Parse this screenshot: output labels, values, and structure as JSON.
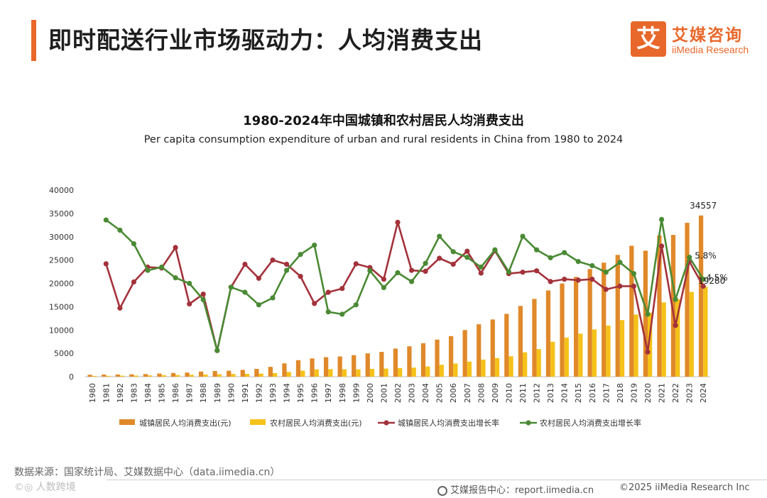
{
  "header": {
    "title": "即时配送行业市场驱动力：人均消费支出",
    "logo_mark": "艾",
    "logo_cn": "艾媒咨询",
    "logo_en": "iiMedia Research"
  },
  "chart_data": {
    "type": "bar+line",
    "title": "1980-2024年中国城镇和农村居民人均消费支出",
    "subtitle": "Per capita consumption expenditure of urban and rural residents in China from 1980 to 2024",
    "categories": [
      "1980",
      "1981",
      "1982",
      "1983",
      "1984",
      "1985",
      "1986",
      "1987",
      "1988",
      "1989",
      "1990",
      "1991",
      "1992",
      "1993",
      "1994",
      "1995",
      "1996",
      "1997",
      "1998",
      "1999",
      "2000",
      "2001",
      "2002",
      "2003",
      "2004",
      "2005",
      "2006",
      "2007",
      "2008",
      "2009",
      "2010",
      "2011",
      "2012",
      "2013",
      "2014",
      "2015",
      "2016",
      "2017",
      "2018",
      "2019",
      "2020",
      "2021",
      "2022",
      "2023",
      "2024"
    ],
    "ylim": [
      0,
      40000
    ],
    "yticks": [
      "0",
      "5000",
      "10000",
      "15000",
      "20000",
      "25000",
      "30000",
      "35000",
      "40000"
    ],
    "bar_series": [
      {
        "name": "城镇居民人均消费支出(元)",
        "color": "#e0892a",
        "values": [
          412,
          457,
          471,
          506,
          559,
          673,
          799,
          884,
          1104,
          1211,
          1279,
          1454,
          1672,
          2111,
          2851,
          3538,
          3919,
          4186,
          4332,
          4616,
          4998,
          5309,
          6030,
          6511,
          7182,
          7943,
          8697,
          9997,
          11243,
          12265,
          13471,
          15161,
          16674,
          18488,
          19968,
          21392,
          23079,
          24445,
          26112,
          28063,
          27007,
          30307,
          30391,
          32994,
          34557
        ]
      },
      {
        "name": "农村居民人均消费支出(元)",
        "color": "#f5c21a",
        "values": [
          162,
          191,
          220,
          248,
          274,
          317,
          357,
          398,
          477,
          535,
          585,
          620,
          659,
          770,
          1017,
          1310,
          1572,
          1617,
          1590,
          1577,
          1670,
          1741,
          1834,
          1943,
          2185,
          2555,
          2829,
          3224,
          3661,
          3993,
          4382,
          5221,
          5908,
          7485,
          8383,
          9223,
          10130,
          10955,
          12124,
          13328,
          13713,
          15916,
          16632,
          18175,
          19280
        ]
      }
    ],
    "line_series": [
      {
        "name": "城镇居民人均消费支出增长率",
        "color": "#a3323b",
        "values": [
          null,
          24200,
          14700,
          20300,
          23500,
          23300,
          27700,
          15600,
          17700,
          5600,
          19200,
          24100,
          21100,
          25000,
          24100,
          21500,
          15700,
          18100,
          18900,
          24200,
          23400,
          20900,
          33100,
          22800,
          22600,
          25400,
          24100,
          26900,
          22200,
          27000,
          22100,
          22400,
          22700,
          20400,
          20900,
          20700,
          20900,
          18700,
          19400,
          19400,
          5300,
          28000,
          11000,
          24700,
          19400
        ]
      },
      {
        "name": "农村居民人均消费支出增长率",
        "color": "#4a8a34",
        "values": [
          null,
          33600,
          31400,
          28500,
          22800,
          23500,
          21200,
          20000,
          16500,
          5600,
          19200,
          18100,
          15400,
          16900,
          22800,
          26200,
          28200,
          13900,
          13400,
          15400,
          22700,
          19100,
          22300,
          20400,
          24300,
          30100,
          26800,
          25600,
          23500,
          27200,
          22500,
          30100,
          27200,
          25500,
          26600,
          24700,
          23800,
          22400,
          24500,
          22100,
          13400,
          33700,
          16600,
          25600,
          20900
        ]
      }
    ],
    "annotations": [
      "34557",
      "5.8%",
      "4.5%",
      "19280"
    ],
    "legend_position": "bottom"
  },
  "footer": {
    "source": "数据来源：国家统计局、艾媒数据中心（data.iimedia.cn）",
    "watermark": "©◎ 人数跨境",
    "report": "艾媒报告中心：report.iimedia.cn",
    "copyright": "©2025  iiMedia Research  Inc"
  }
}
